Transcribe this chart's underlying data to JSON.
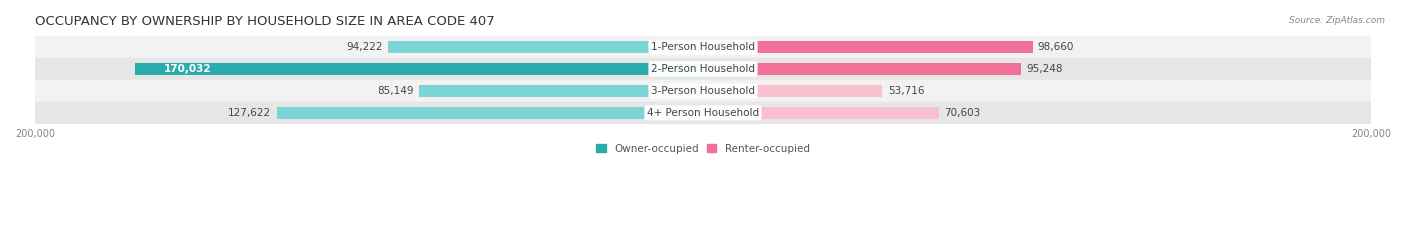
{
  "title": "OCCUPANCY BY OWNERSHIP BY HOUSEHOLD SIZE IN AREA CODE 407",
  "source": "Source: ZipAtlas.com",
  "categories": [
    "1-Person Household",
    "2-Person Household",
    "3-Person Household",
    "4+ Person Household"
  ],
  "owner_values": [
    94222,
    170032,
    85149,
    127622
  ],
  "renter_values": [
    98660,
    95248,
    53716,
    70603
  ],
  "owner_color_light": "#7DD4D4",
  "owner_color_dark": "#2AACAC",
  "renter_color_light": "#F9C0D0",
  "renter_color_dark": "#F07098",
  "row_bg_colors": [
    "#F2F2F2",
    "#E6E6E6",
    "#F2F2F2",
    "#E6E6E6"
  ],
  "xlim": 200000,
  "legend_owner": "Owner-occupied",
  "legend_renter": "Renter-occupied",
  "title_fontsize": 9.5,
  "label_fontsize": 7.5,
  "tick_fontsize": 7,
  "bar_height": 0.58,
  "figsize": [
    14.06,
    2.33
  ],
  "dpi": 100,
  "owner_threshold": 150000,
  "renter_threshold": 80000
}
